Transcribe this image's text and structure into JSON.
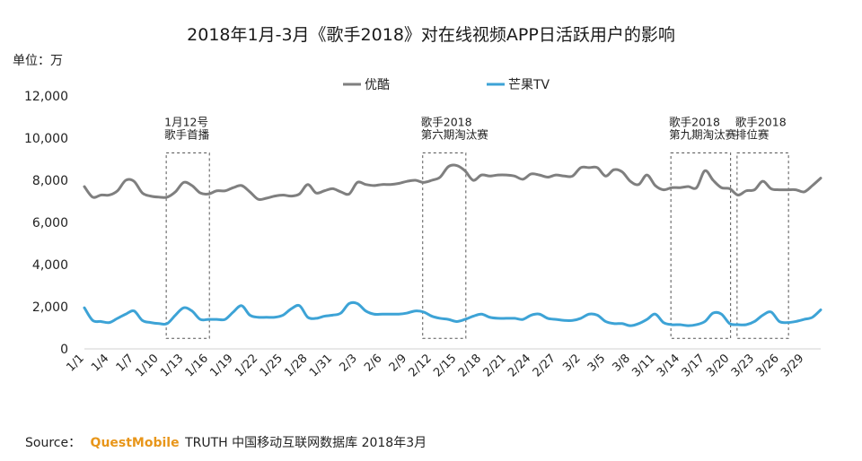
{
  "chart_data": {
    "type": "line",
    "title": "2018年1月-3月《歌手2018》对在线视频APP日活跃用户的影响",
    "unit_label": "单位：万",
    "ylim": [
      0,
      12000
    ],
    "yticks": [
      "0",
      "2,000",
      "4,000",
      "6,000",
      "8,000",
      "10,000",
      "12,000"
    ],
    "ytick_values": [
      0,
      2000,
      4000,
      6000,
      8000,
      10000,
      12000
    ],
    "x": [
      "1/1",
      "1/2",
      "1/3",
      "1/4",
      "1/5",
      "1/6",
      "1/7",
      "1/8",
      "1/9",
      "1/10",
      "1/11",
      "1/12",
      "1/13",
      "1/14",
      "1/15",
      "1/16",
      "1/17",
      "1/18",
      "1/19",
      "1/20",
      "1/21",
      "1/22",
      "1/23",
      "1/24",
      "1/25",
      "1/26",
      "1/27",
      "1/28",
      "1/29",
      "1/30",
      "1/31",
      "2/1",
      "2/2",
      "2/3",
      "2/4",
      "2/5",
      "2/6",
      "2/7",
      "2/8",
      "2/9",
      "2/10",
      "2/11",
      "2/12",
      "2/13",
      "2/14",
      "2/15",
      "2/16",
      "2/17",
      "2/18",
      "2/19",
      "2/20",
      "2/21",
      "2/22",
      "2/23",
      "2/24",
      "2/25",
      "2/26",
      "2/27",
      "2/28",
      "3/1",
      "3/2",
      "3/3",
      "3/4",
      "3/5",
      "3/6",
      "3/7",
      "3/8",
      "3/9",
      "3/10",
      "3/11",
      "3/12",
      "3/13",
      "3/14",
      "3/15",
      "3/16",
      "3/17",
      "3/18",
      "3/19",
      "3/20",
      "3/21",
      "3/22",
      "3/23",
      "3/24",
      "3/25",
      "3/26",
      "3/27",
      "3/28",
      "3/29",
      "3/30",
      "3/31"
    ],
    "xtick_labels": [
      "1/1",
      "1/4",
      "1/7",
      "1/10",
      "1/13",
      "1/16",
      "1/19",
      "1/22",
      "1/25",
      "1/28",
      "1/31",
      "2/3",
      "2/6",
      "2/9",
      "2/12",
      "2/15",
      "2/18",
      "2/21",
      "2/24",
      "2/27",
      "3/2",
      "3/5",
      "3/8",
      "3/11",
      "3/14",
      "3/17",
      "3/20",
      "3/23",
      "3/26",
      "3/29"
    ],
    "series": [
      {
        "name": "优酷",
        "color": "#7f7f7f",
        "values": [
          7700,
          7200,
          7300,
          7300,
          7500,
          8000,
          7950,
          7400,
          7250,
          7200,
          7200,
          7450,
          7900,
          7750,
          7400,
          7350,
          7500,
          7500,
          7650,
          7750,
          7450,
          7100,
          7150,
          7250,
          7300,
          7250,
          7350,
          7800,
          7400,
          7500,
          7600,
          7450,
          7350,
          7900,
          7800,
          7750,
          7800,
          7800,
          7850,
          7950,
          8000,
          7900,
          8000,
          8150,
          8650,
          8700,
          8450,
          8000,
          8250,
          8200,
          8250,
          8250,
          8200,
          8050,
          8300,
          8250,
          8150,
          8250,
          8200,
          8200,
          8600,
          8600,
          8600,
          8200,
          8500,
          8400,
          7950,
          7800,
          8250,
          7750,
          7550,
          7650,
          7650,
          7700,
          7650,
          8450,
          8000,
          7650,
          7600,
          7300,
          7500,
          7550,
          7950,
          7600,
          7550,
          7550,
          7550,
          7450,
          7750,
          8100
        ]
      },
      {
        "name": "芒果TV",
        "color": "#3da3d6",
        "values": [
          1950,
          1350,
          1300,
          1250,
          1450,
          1650,
          1800,
          1350,
          1250,
          1200,
          1200,
          1600,
          1950,
          1800,
          1400,
          1400,
          1400,
          1400,
          1750,
          2050,
          1600,
          1500,
          1500,
          1500,
          1600,
          1900,
          2050,
          1500,
          1450,
          1550,
          1600,
          1700,
          2150,
          2150,
          1800,
          1650,
          1650,
          1650,
          1650,
          1700,
          1800,
          1750,
          1550,
          1450,
          1400,
          1300,
          1400,
          1550,
          1650,
          1500,
          1450,
          1450,
          1450,
          1400,
          1600,
          1650,
          1450,
          1400,
          1350,
          1350,
          1450,
          1650,
          1600,
          1300,
          1200,
          1200,
          1100,
          1200,
          1400,
          1650,
          1250,
          1150,
          1150,
          1100,
          1150,
          1300,
          1700,
          1650,
          1200,
          1150,
          1150,
          1300,
          1600,
          1750,
          1300,
          1250,
          1300,
          1400,
          1500,
          1850
        ]
      }
    ],
    "legend": "top-center",
    "annotations": [
      {
        "lines": [
          "1月12号",
          "歌手首播"
        ],
        "range": [
          "1/11",
          "1/16"
        ]
      },
      {
        "lines": [
          "歌手2018",
          "第六期淘汰赛"
        ],
        "range": [
          "2/11",
          "2/16"
        ]
      },
      {
        "lines": [
          "歌手2018",
          "第九期淘汰赛"
        ],
        "range": [
          "3/13",
          "3/20"
        ]
      },
      {
        "lines": [
          "歌手2018",
          "排位赛"
        ],
        "range": [
          "3/21",
          "3/27"
        ]
      }
    ],
    "grid": false
  },
  "footer": {
    "source_prefix": "Source：",
    "brand": "QuestMobile",
    "source_suffix": "TRUTH 中国移动互联网数据库 2018年3月"
  }
}
